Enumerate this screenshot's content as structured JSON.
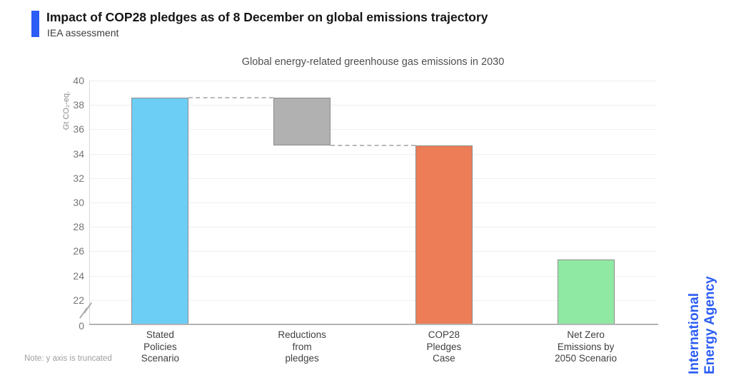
{
  "header": {
    "title": "Impact of COP28 pledges as of 8 December on global emissions trajectory",
    "subtitle": "IEA assessment"
  },
  "note": "Note: y axis is truncated",
  "branding": {
    "name_line1": "International",
    "name_line2": "Energy Agency",
    "color": "#2B5CF5"
  },
  "colors": {
    "accent": "#2B5CF5",
    "grid": "#efefef",
    "axis": "#b3b3b3",
    "bar_border": "#8c8c8c",
    "connector": "#b9b9b9"
  },
  "chart_data": {
    "type": "bar",
    "title": "Global energy-related greenhouse gas emissions in 2030",
    "ylabel": "Gt CO₂-eq.",
    "unit": "Gt CO2-eq.",
    "ylim": [
      0,
      40
    ],
    "yticks": [
      40,
      38,
      36,
      34,
      32,
      30,
      28,
      26,
      24,
      22,
      0
    ],
    "axis_truncated": true,
    "grid": true,
    "legend": null,
    "bars": [
      {
        "label_lines": [
          "Stated",
          "Policies",
          "Scenario"
        ],
        "value": 38.6,
        "base": 0,
        "color": "#6DCEF5"
      },
      {
        "label_lines": [
          "Reductions",
          "from",
          "pledges"
        ],
        "value": 38.6,
        "base": 34.7,
        "floating": true,
        "color": "#B1B1B1"
      },
      {
        "label_lines": [
          "COP28",
          "Pledges",
          "Case"
        ],
        "value": 34.7,
        "base": 0,
        "color": "#EC7D57"
      },
      {
        "label_lines": [
          "Net Zero",
          "Emissions by",
          "2050 Scenario"
        ],
        "value": 25.3,
        "base": 0,
        "color": "#90E9A2"
      }
    ],
    "connectors": [
      {
        "value": 38.6,
        "from": 0,
        "to": 1
      },
      {
        "value": 34.7,
        "from": 1,
        "to": 2
      }
    ]
  }
}
